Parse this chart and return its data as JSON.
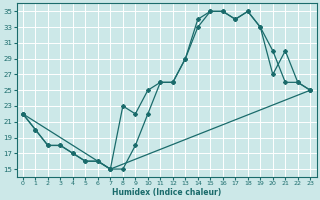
{
  "title": "",
  "xlabel": "Humidex (Indice chaleur)",
  "xlim": [
    -0.5,
    23.5
  ],
  "ylim": [
    14,
    36
  ],
  "yticks": [
    15,
    17,
    19,
    21,
    23,
    25,
    27,
    29,
    31,
    33,
    35
  ],
  "xticks": [
    0,
    1,
    2,
    3,
    4,
    5,
    6,
    7,
    8,
    9,
    10,
    11,
    12,
    13,
    14,
    15,
    16,
    17,
    18,
    19,
    20,
    21,
    22,
    23
  ],
  "background_color": "#cce8e8",
  "grid_color": "#ffffff",
  "line_color": "#1a6b6b",
  "line1": {
    "x": [
      0,
      1,
      2,
      3,
      4,
      5,
      6,
      7,
      8,
      9,
      10,
      11,
      12,
      13,
      14,
      15,
      16,
      17,
      18,
      19,
      20,
      21,
      22,
      23
    ],
    "y": [
      22,
      20,
      18,
      18,
      17,
      16,
      16,
      15,
      15,
      18,
      22,
      26,
      26,
      29,
      34,
      35,
      35,
      34,
      35,
      33,
      27,
      30,
      26,
      25
    ]
  },
  "line2": {
    "x": [
      0,
      1,
      2,
      3,
      4,
      5,
      6,
      7,
      8,
      9,
      10,
      11,
      12,
      13,
      14,
      15,
      16,
      17,
      18,
      19,
      20,
      21,
      22,
      23
    ],
    "y": [
      22,
      20,
      18,
      18,
      17,
      16,
      16,
      15,
      23,
      22,
      25,
      26,
      26,
      29,
      33,
      35,
      35,
      34,
      35,
      33,
      30,
      26,
      26,
      25
    ]
  },
  "line3": {
    "x": [
      0,
      7,
      23
    ],
    "y": [
      22,
      15,
      25
    ]
  }
}
